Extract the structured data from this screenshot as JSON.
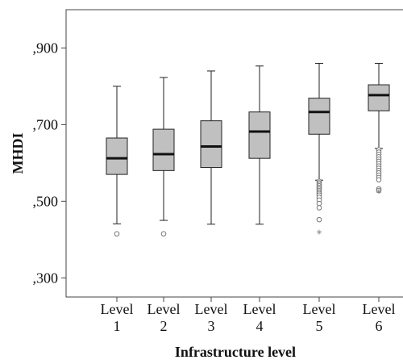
{
  "chart_data": {
    "type": "boxplot",
    "title": "",
    "xlabel": "Infrastructure level",
    "ylabel": "MHDI",
    "ylim": [
      0.25,
      1.0
    ],
    "yticks": [
      0.3,
      0.5,
      0.7,
      0.9
    ],
    "ytick_labels": [
      ",300",
      ",500",
      ",700",
      ",900"
    ],
    "grid": false,
    "box_color": "#c0c0c0",
    "categories": [
      {
        "line1": "Level",
        "line2": "1"
      },
      {
        "line1": "Level",
        "line2": "2"
      },
      {
        "line1": "Level",
        "line2": "3"
      },
      {
        "line1": "Level",
        "line2": "4"
      },
      {
        "line1": "Level",
        "line2": "5"
      },
      {
        "line1": "Level",
        "line2": "6"
      }
    ],
    "series": [
      {
        "min": 0.441,
        "q1": 0.57,
        "median": 0.612,
        "q3": 0.665,
        "max": 0.8,
        "outliers": [
          0.415
        ],
        "extremes": []
      },
      {
        "min": 0.45,
        "q1": 0.58,
        "median": 0.623,
        "q3": 0.688,
        "max": 0.823,
        "outliers": [
          0.415
        ],
        "extremes": []
      },
      {
        "min": 0.44,
        "q1": 0.588,
        "median": 0.643,
        "q3": 0.71,
        "max": 0.84,
        "outliers": [],
        "extremes": []
      },
      {
        "min": 0.44,
        "q1": 0.612,
        "median": 0.682,
        "q3": 0.733,
        "max": 0.853,
        "outliers": [],
        "extremes": []
      },
      {
        "min": 0.555,
        "q1": 0.675,
        "median": 0.733,
        "q3": 0.769,
        "max": 0.86,
        "outliers": [
          0.552,
          0.548,
          0.544,
          0.54,
          0.536,
          0.532,
          0.528,
          0.524,
          0.52,
          0.516,
          0.51,
          0.503,
          0.494,
          0.483,
          0.452
        ],
        "extremes": [
          0.415
        ]
      },
      {
        "min": 0.638,
        "q1": 0.736,
        "median": 0.777,
        "q3": 0.804,
        "max": 0.86,
        "outliers": [
          0.634,
          0.628,
          0.622,
          0.616,
          0.61,
          0.604,
          0.598,
          0.592,
          0.586,
          0.58,
          0.574,
          0.568,
          0.562,
          0.556,
          0.532,
          0.528
        ],
        "extremes": [
          0.522
        ]
      }
    ]
  }
}
